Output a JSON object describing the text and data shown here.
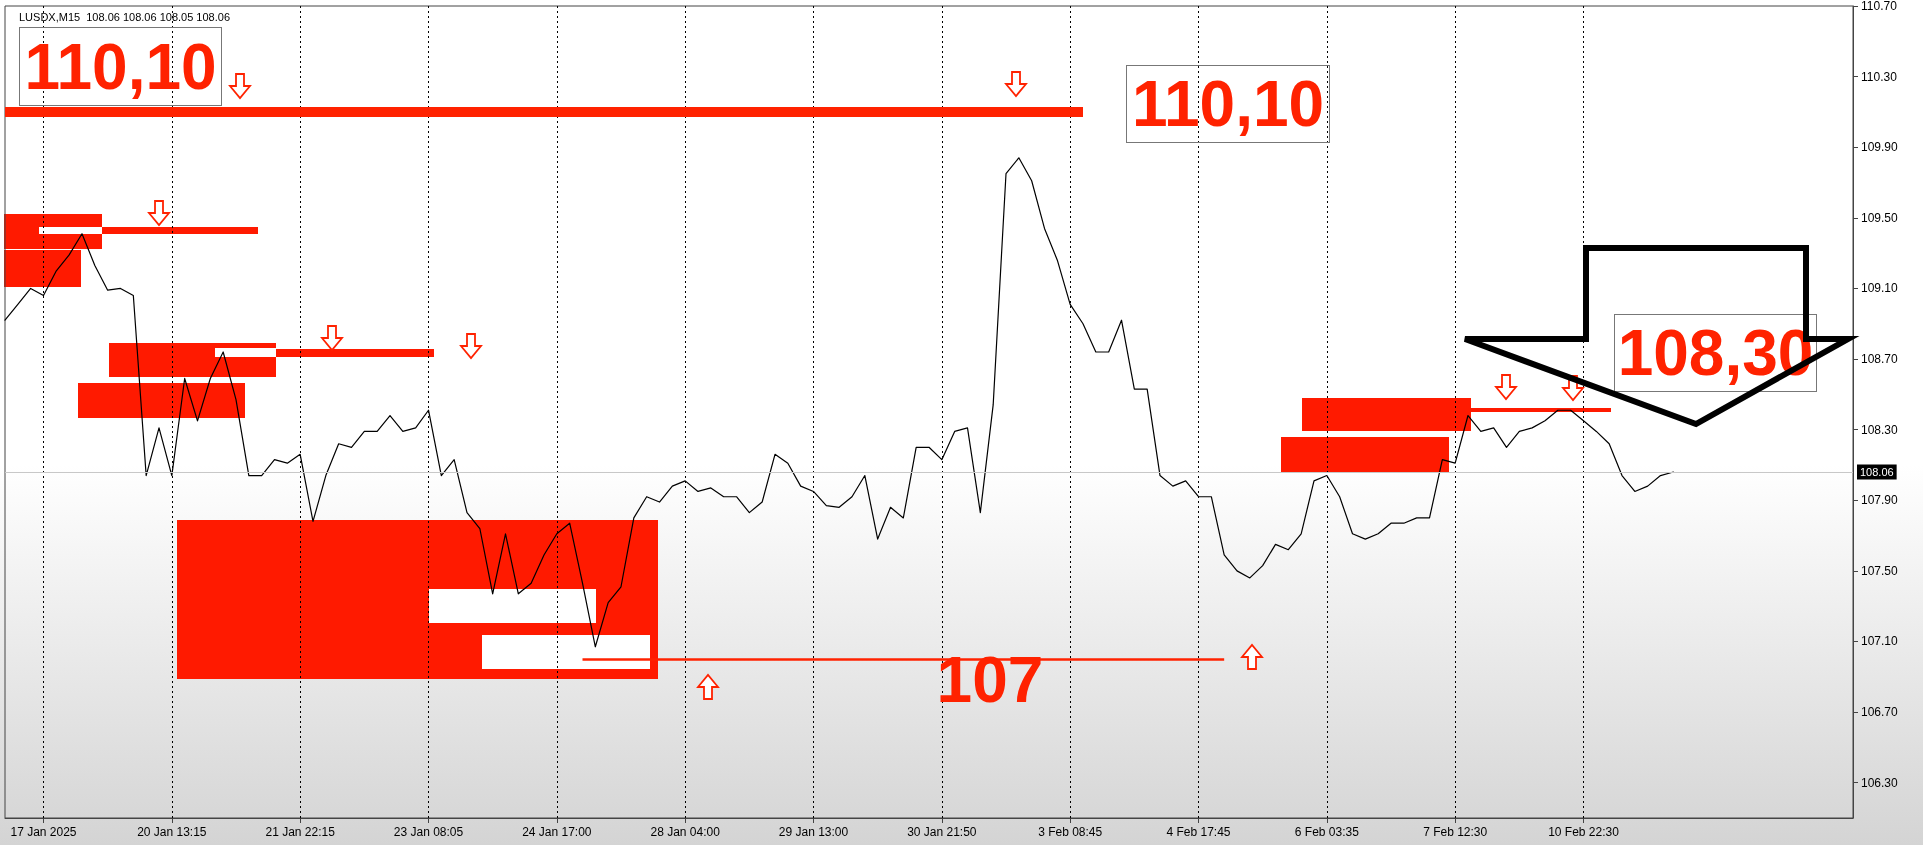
{
  "chart_data": {
    "type": "line",
    "title": "LUSDX,M15  108.06 108.06 108.05 108.06",
    "categories": [
      null,
      null,
      null,
      "17 Jan 2025",
      null,
      null,
      null,
      null,
      null,
      null,
      null,
      null,
      null,
      "20 Jan 13:15",
      null,
      null,
      null,
      null,
      null,
      null,
      null,
      null,
      null,
      "21 Jan 22:15",
      null,
      null,
      null,
      null,
      null,
      null,
      null,
      null,
      null,
      "23 Jan 08:05",
      null,
      null,
      null,
      null,
      null,
      null,
      null,
      null,
      null,
      "24 Jan 17:00",
      null,
      null,
      null,
      null,
      null,
      null,
      null,
      null,
      null,
      "28 Jan 04:00",
      null,
      null,
      null,
      null,
      null,
      null,
      null,
      null,
      null,
      "29 Jan 13:00",
      null,
      null,
      null,
      null,
      null,
      null,
      null,
      null,
      null,
      "30 Jan 21:50",
      null,
      null,
      null,
      null,
      null,
      null,
      null,
      null,
      null,
      "3 Feb 08:45",
      null,
      null,
      null,
      null,
      null,
      null,
      null,
      null,
      null,
      "4 Feb 17:45",
      null,
      null,
      null,
      null,
      null,
      null,
      null,
      null,
      null,
      "6 Feb 03:35",
      null,
      null,
      null,
      null,
      null,
      null,
      null,
      null,
      null,
      "7 Feb 12:30",
      null,
      null,
      null,
      null,
      null,
      null,
      null,
      null,
      null,
      "10 Feb 22:30",
      null,
      null,
      null,
      null,
      null,
      null,
      null,
      null,
      null,
      null,
      null,
      null,
      null,
      null,
      null,
      null,
      null,
      null,
      null,
      null,
      null
    ],
    "series": [
      {
        "color": "#000000",
        "values": [
          108.92,
          109.01,
          109.1,
          109.06,
          109.2,
          109.29,
          109.41,
          109.23,
          109.09,
          109.1,
          109.06,
          108.04,
          108.31,
          108.04,
          108.59,
          108.35,
          108.59,
          108.74,
          108.47,
          108.04,
          108.04,
          108.13,
          108.11,
          108.16,
          107.78,
          108.04,
          108.22,
          108.2,
          108.29,
          108.29,
          108.38,
          108.29,
          108.31,
          108.41,
          108.04,
          108.13,
          107.83,
          107.74,
          107.37,
          107.71,
          107.37,
          107.43,
          107.59,
          107.71,
          107.77,
          107.43,
          107.07,
          107.32,
          107.41,
          107.8,
          107.92,
          107.89,
          107.98,
          108.01,
          107.95,
          107.97,
          107.92,
          107.92,
          107.83,
          107.89,
          108.16,
          108.11,
          107.98,
          107.95,
          107.87,
          107.86,
          107.92,
          108.04,
          107.68,
          107.86,
          107.8,
          108.2,
          108.2,
          108.13,
          108.29,
          108.31,
          107.83,
          108.44,
          109.75,
          109.84,
          109.71,
          109.44,
          109.26,
          109.01,
          108.9,
          108.74,
          108.74,
          108.92,
          108.53,
          108.53,
          108.04,
          107.98,
          108.01,
          107.92,
          107.92,
          107.59,
          107.5,
          107.46,
          107.53,
          107.65,
          107.62,
          107.71,
          108.01,
          108.04,
          107.92,
          107.71,
          107.68,
          107.71,
          107.77,
          107.77,
          107.8,
          107.8,
          108.13,
          108.11,
          108.38,
          108.29,
          108.31,
          108.2,
          108.29,
          108.31,
          108.35,
          108.41,
          108.41,
          108.35,
          108.29,
          108.22,
          108.04,
          107.95,
          107.98,
          108.04,
          108.06,
          null,
          null,
          null,
          null,
          null,
          null,
          null,
          null,
          null,
          null,
          null,
          null,
          null,
          null
        ]
      }
    ],
    "ylim": [
      106.1,
      110.7
    ],
    "yticks": [
      {
        "value": 106.3,
        "label": "106.30"
      },
      {
        "value": 106.7,
        "label": "106.70"
      },
      {
        "value": 107.1,
        "label": "107.10"
      },
      {
        "value": 107.5,
        "label": "107.50"
      },
      {
        "value": 107.9,
        "label": "107.90"
      },
      {
        "value": 108.3,
        "label": "108.30"
      },
      {
        "value": 108.7,
        "label": "108.70"
      },
      {
        "value": 109.1,
        "label": "109.10"
      },
      {
        "value": 109.5,
        "label": "109.50"
      },
      {
        "value": 109.9,
        "label": "109.90"
      },
      {
        "value": 110.3,
        "label": "110.30"
      },
      {
        "value": 110.7,
        "label": "110.70"
      }
    ],
    "grid": "x",
    "marker": "none",
    "line_style": "solid",
    "ref_lines": [
      {
        "axis": "y",
        "value": 110.1,
        "label": "110,10",
        "color": "#ff2200"
      },
      {
        "axis": "y",
        "value": 107,
        "label": "107",
        "color": "#ff2200"
      },
      {
        "axis": "y",
        "value": 108.06,
        "label": "108.06",
        "color": "#c8c8c8"
      }
    ],
    "annotations": [
      "110,10",
      "108,30"
    ]
  }
}
